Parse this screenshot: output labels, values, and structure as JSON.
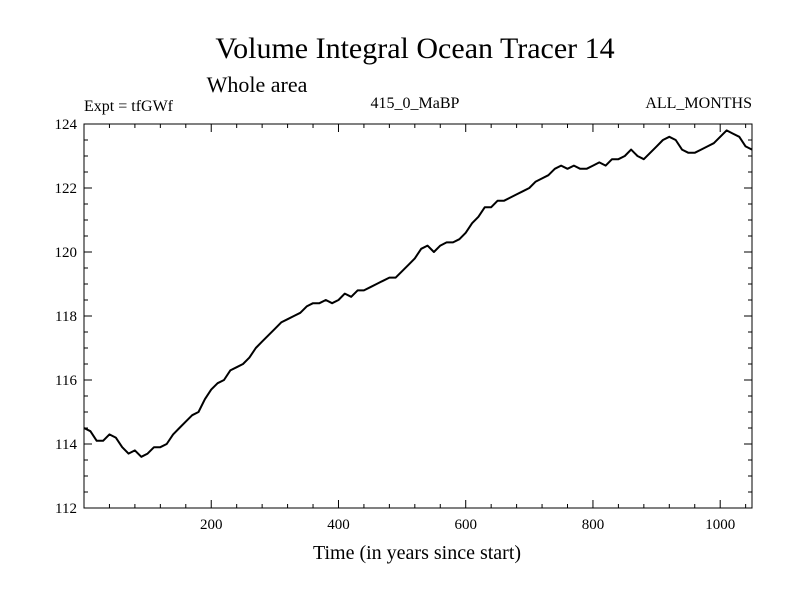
{
  "chart_data": {
    "type": "line",
    "title": "Volume Integral Ocean Tracer 14",
    "subtitle": "Whole area",
    "info_left": "Expt = tfGWf",
    "info_center": "415_0_MaBP",
    "info_right": "ALL_MONTHS",
    "xlabel": "Time (in years since start)",
    "ylabel": "",
    "xlim": [
      0,
      1050
    ],
    "ylim": [
      112,
      124
    ],
    "xticks": [
      200,
      400,
      600,
      800,
      1000
    ],
    "yticks": [
      112,
      114,
      116,
      118,
      120,
      122,
      124
    ],
    "grid": false,
    "line_color": "#000000",
    "series": [
      {
        "name": "Ocean Tracer 14",
        "points": [
          [
            0,
            114.5
          ],
          [
            10,
            114.4
          ],
          [
            20,
            114.1
          ],
          [
            30,
            114.1
          ],
          [
            40,
            114.3
          ],
          [
            50,
            114.2
          ],
          [
            60,
            113.9
          ],
          [
            70,
            113.7
          ],
          [
            80,
            113.8
          ],
          [
            90,
            113.6
          ],
          [
            100,
            113.7
          ],
          [
            110,
            113.9
          ],
          [
            120,
            113.9
          ],
          [
            130,
            114.0
          ],
          [
            140,
            114.3
          ],
          [
            150,
            114.5
          ],
          [
            160,
            114.7
          ],
          [
            170,
            114.9
          ],
          [
            180,
            115.0
          ],
          [
            190,
            115.4
          ],
          [
            200,
            115.7
          ],
          [
            210,
            115.9
          ],
          [
            220,
            116.0
          ],
          [
            230,
            116.3
          ],
          [
            240,
            116.4
          ],
          [
            250,
            116.5
          ],
          [
            260,
            116.7
          ],
          [
            270,
            117.0
          ],
          [
            280,
            117.2
          ],
          [
            290,
            117.4
          ],
          [
            300,
            117.6
          ],
          [
            310,
            117.8
          ],
          [
            320,
            117.9
          ],
          [
            330,
            118.0
          ],
          [
            340,
            118.1
          ],
          [
            350,
            118.3
          ],
          [
            360,
            118.4
          ],
          [
            370,
            118.4
          ],
          [
            380,
            118.5
          ],
          [
            390,
            118.4
          ],
          [
            400,
            118.5
          ],
          [
            410,
            118.7
          ],
          [
            420,
            118.6
          ],
          [
            430,
            118.8
          ],
          [
            440,
            118.8
          ],
          [
            450,
            118.9
          ],
          [
            460,
            119.0
          ],
          [
            470,
            119.1
          ],
          [
            480,
            119.2
          ],
          [
            490,
            119.2
          ],
          [
            500,
            119.4
          ],
          [
            510,
            119.6
          ],
          [
            520,
            119.8
          ],
          [
            530,
            120.1
          ],
          [
            540,
            120.2
          ],
          [
            550,
            120.0
          ],
          [
            560,
            120.2
          ],
          [
            570,
            120.3
          ],
          [
            580,
            120.3
          ],
          [
            590,
            120.4
          ],
          [
            600,
            120.6
          ],
          [
            610,
            120.9
          ],
          [
            620,
            121.1
          ],
          [
            630,
            121.4
          ],
          [
            640,
            121.4
          ],
          [
            650,
            121.6
          ],
          [
            660,
            121.6
          ],
          [
            670,
            121.7
          ],
          [
            680,
            121.8
          ],
          [
            690,
            121.9
          ],
          [
            700,
            122.0
          ],
          [
            710,
            122.2
          ],
          [
            720,
            122.3
          ],
          [
            730,
            122.4
          ],
          [
            740,
            122.6
          ],
          [
            750,
            122.7
          ],
          [
            760,
            122.6
          ],
          [
            770,
            122.7
          ],
          [
            780,
            122.6
          ],
          [
            790,
            122.6
          ],
          [
            800,
            122.7
          ],
          [
            810,
            122.8
          ],
          [
            820,
            122.7
          ],
          [
            830,
            122.9
          ],
          [
            840,
            122.9
          ],
          [
            850,
            123.0
          ],
          [
            860,
            123.2
          ],
          [
            870,
            123.0
          ],
          [
            880,
            122.9
          ],
          [
            890,
            123.1
          ],
          [
            900,
            123.3
          ],
          [
            910,
            123.5
          ],
          [
            920,
            123.6
          ],
          [
            930,
            123.5
          ],
          [
            940,
            123.2
          ],
          [
            950,
            123.1
          ],
          [
            960,
            123.1
          ],
          [
            970,
            123.2
          ],
          [
            980,
            123.3
          ],
          [
            990,
            123.4
          ],
          [
            1000,
            123.6
          ],
          [
            1010,
            123.8
          ],
          [
            1020,
            123.7
          ],
          [
            1030,
            123.6
          ],
          [
            1040,
            123.3
          ],
          [
            1050,
            123.2
          ]
        ]
      }
    ]
  }
}
